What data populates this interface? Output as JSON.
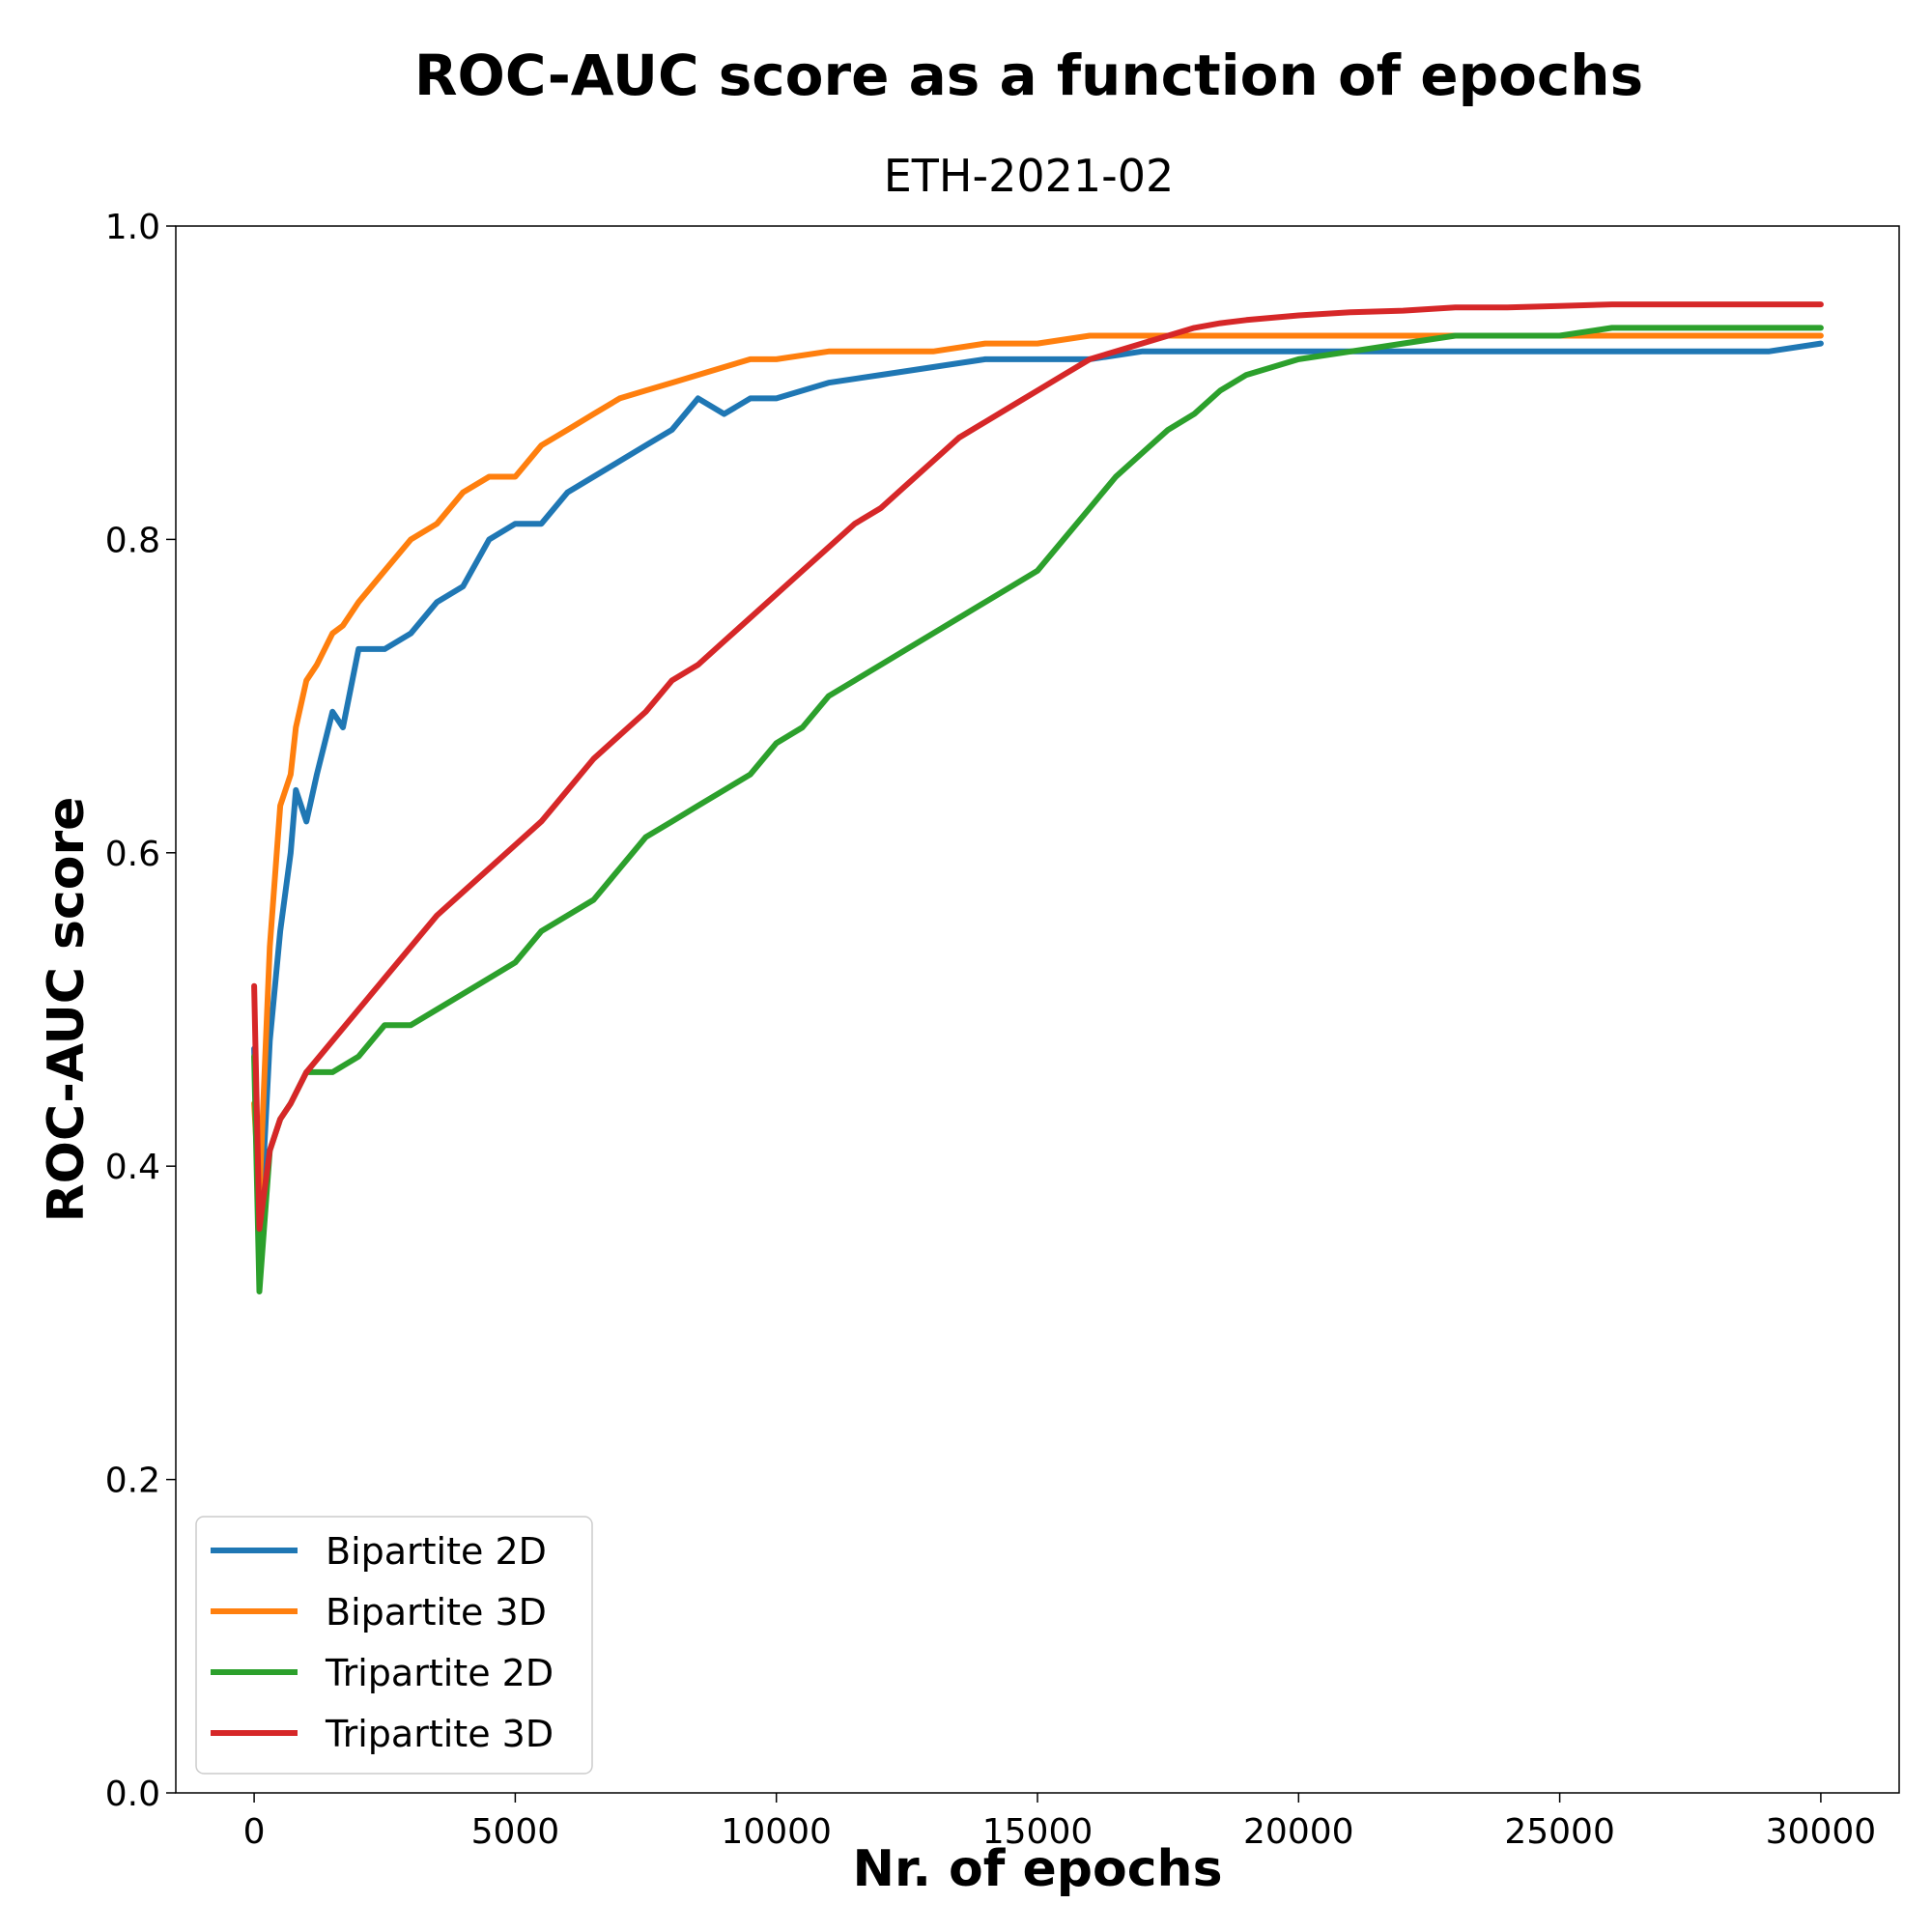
{
  "chart_data": {
    "type": "line",
    "title": "ROC-AUC score as a function of epochs",
    "subtitle": "ETH-2021-02",
    "xlabel": "Nr. of epochs",
    "ylabel": "ROC-AUC score",
    "xlim": [
      -1500,
      31500
    ],
    "ylim": [
      0.0,
      1.0
    ],
    "xticks": [
      0,
      5000,
      10000,
      15000,
      20000,
      25000,
      30000
    ],
    "xtick_labels": [
      "0",
      "5000",
      "10000",
      "15000",
      "20000",
      "25000",
      "30000"
    ],
    "yticks": [
      0.0,
      0.2,
      0.4,
      0.6,
      0.8,
      1.0
    ],
    "ytick_labels": [
      "0.0",
      "0.2",
      "0.4",
      "0.6",
      "0.8",
      "1.0"
    ],
    "grid": false,
    "legend_position": "lower-left",
    "series": [
      {
        "name": "Bipartite 2D",
        "color": "#1f77b4",
        "x": [
          0,
          100,
          300,
          500,
          700,
          800,
          1000,
          1200,
          1500,
          1700,
          2000,
          2500,
          3000,
          3500,
          4000,
          4500,
          5000,
          5500,
          6000,
          6500,
          7000,
          7500,
          8000,
          8500,
          9000,
          9500,
          10000,
          11000,
          12000,
          13000,
          14000,
          15000,
          16000,
          17000,
          18000,
          19000,
          20000,
          21000,
          22000,
          23000,
          24000,
          25000,
          26000,
          27000,
          28000,
          29000,
          30000
        ],
        "y": [
          0.475,
          0.35,
          0.48,
          0.55,
          0.6,
          0.64,
          0.62,
          0.65,
          0.69,
          0.68,
          0.73,
          0.73,
          0.74,
          0.76,
          0.77,
          0.8,
          0.81,
          0.81,
          0.83,
          0.84,
          0.85,
          0.86,
          0.87,
          0.89,
          0.88,
          0.89,
          0.89,
          0.9,
          0.905,
          0.91,
          0.915,
          0.915,
          0.915,
          0.92,
          0.92,
          0.92,
          0.92,
          0.92,
          0.92,
          0.92,
          0.92,
          0.92,
          0.92,
          0.92,
          0.92,
          0.92,
          0.925
        ]
      },
      {
        "name": "Bipartite 3D",
        "color": "#ff7f0e",
        "x": [
          0,
          100,
          300,
          500,
          700,
          800,
          1000,
          1200,
          1500,
          1700,
          2000,
          2500,
          3000,
          3500,
          4000,
          4500,
          5000,
          5500,
          6000,
          6500,
          7000,
          7500,
          8000,
          8500,
          9000,
          9500,
          10000,
          11000,
          12000,
          13000,
          14000,
          15000,
          16000,
          17000,
          18000,
          19000,
          20000,
          21000,
          22000,
          23000,
          24000,
          25000,
          26000,
          27000,
          28000,
          29000,
          30000
        ],
        "y": [
          0.44,
          0.38,
          0.54,
          0.63,
          0.65,
          0.68,
          0.71,
          0.72,
          0.74,
          0.745,
          0.76,
          0.78,
          0.8,
          0.81,
          0.83,
          0.84,
          0.84,
          0.86,
          0.87,
          0.88,
          0.89,
          0.895,
          0.9,
          0.905,
          0.91,
          0.915,
          0.915,
          0.92,
          0.92,
          0.92,
          0.925,
          0.925,
          0.93,
          0.93,
          0.93,
          0.93,
          0.93,
          0.93,
          0.93,
          0.93,
          0.93,
          0.93,
          0.93,
          0.93,
          0.93,
          0.93,
          0.93
        ]
      },
      {
        "name": "Tripartite 2D",
        "color": "#2ca02c",
        "x": [
          0,
          100,
          300,
          500,
          700,
          1000,
          1500,
          2000,
          2500,
          3000,
          3500,
          4000,
          4500,
          5000,
          5500,
          6000,
          6500,
          7000,
          7500,
          8000,
          8500,
          9000,
          9500,
          10000,
          10500,
          11000,
          11500,
          12000,
          12500,
          13000,
          13500,
          14000,
          14500,
          15000,
          15500,
          16000,
          16500,
          17000,
          17500,
          18000,
          18500,
          19000,
          19500,
          20000,
          21000,
          22000,
          23000,
          24000,
          25000,
          26000,
          27000,
          28000,
          29000,
          30000
        ],
        "y": [
          0.47,
          0.32,
          0.41,
          0.43,
          0.44,
          0.46,
          0.46,
          0.47,
          0.49,
          0.49,
          0.5,
          0.51,
          0.52,
          0.53,
          0.55,
          0.56,
          0.57,
          0.59,
          0.61,
          0.62,
          0.63,
          0.64,
          0.65,
          0.67,
          0.68,
          0.7,
          0.71,
          0.72,
          0.73,
          0.74,
          0.75,
          0.76,
          0.77,
          0.78,
          0.8,
          0.82,
          0.84,
          0.855,
          0.87,
          0.88,
          0.895,
          0.905,
          0.91,
          0.915,
          0.92,
          0.925,
          0.93,
          0.93,
          0.93,
          0.935,
          0.935,
          0.935,
          0.935,
          0.935
        ]
      },
      {
        "name": "Tripartite 3D",
        "color": "#d62728",
        "x": [
          0,
          100,
          300,
          500,
          700,
          1000,
          1500,
          2000,
          2500,
          3000,
          3500,
          4000,
          4500,
          5000,
          5500,
          6000,
          6500,
          7000,
          7500,
          8000,
          8500,
          9000,
          9500,
          10000,
          10500,
          11000,
          11500,
          12000,
          12500,
          13000,
          13500,
          14000,
          14500,
          15000,
          15500,
          16000,
          16500,
          17000,
          17500,
          18000,
          18500,
          19000,
          20000,
          21000,
          22000,
          23000,
          24000,
          25000,
          26000,
          27000,
          28000,
          29000,
          30000
        ],
        "y": [
          0.515,
          0.36,
          0.41,
          0.43,
          0.44,
          0.46,
          0.48,
          0.5,
          0.52,
          0.54,
          0.56,
          0.575,
          0.59,
          0.605,
          0.62,
          0.64,
          0.66,
          0.675,
          0.69,
          0.71,
          0.72,
          0.735,
          0.75,
          0.765,
          0.78,
          0.795,
          0.81,
          0.82,
          0.835,
          0.85,
          0.865,
          0.875,
          0.885,
          0.895,
          0.905,
          0.915,
          0.92,
          0.925,
          0.93,
          0.935,
          0.938,
          0.94,
          0.943,
          0.945,
          0.946,
          0.948,
          0.948,
          0.949,
          0.95,
          0.95,
          0.95,
          0.95,
          0.95
        ]
      }
    ]
  }
}
